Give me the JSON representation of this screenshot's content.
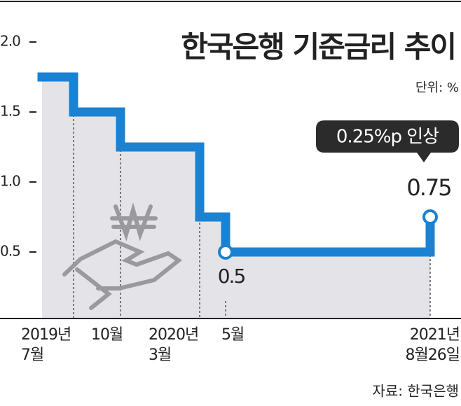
{
  "chart_data": {
    "type": "line",
    "step": "post",
    "title": "한국은행 기준금리 추이",
    "unit_label": "단위: %",
    "source": "자료: 한국은행",
    "annotation": "0.25%p 인상",
    "x": [
      null,
      "2019년\n7월",
      "10월",
      "2020년\n3월",
      "5월",
      "2021년\n8월26일"
    ],
    "series": [
      {
        "name": "기준금리",
        "color": "#1b82d2",
        "values": [
          1.75,
          1.5,
          1.25,
          0.75,
          0.5,
          0.75
        ]
      }
    ],
    "value_label_indices": [
      4,
      5
    ],
    "ylim": [
      0,
      2
    ],
    "yticks": [
      {
        "value": 2,
        "label": "2.0"
      },
      1.5,
      {
        "value": 1,
        "label": "1.0"
      },
      0.5
    ],
    "area_color": "#e4e4e8"
  }
}
